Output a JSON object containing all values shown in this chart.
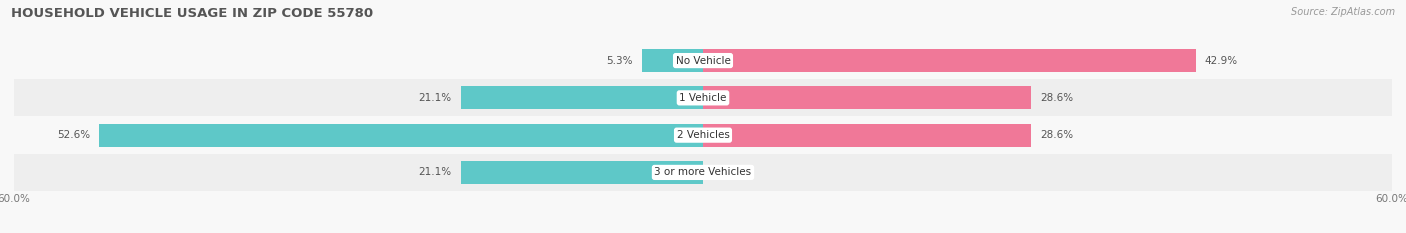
{
  "title": "HOUSEHOLD VEHICLE USAGE IN ZIP CODE 55780",
  "source": "Source: ZipAtlas.com",
  "categories": [
    "3 or more Vehicles",
    "2 Vehicles",
    "1 Vehicle",
    "No Vehicle"
  ],
  "owner_values": [
    21.1,
    52.6,
    21.1,
    5.3
  ],
  "renter_values": [
    0.0,
    28.6,
    28.6,
    42.9
  ],
  "axis_max": 60.0,
  "owner_color": "#5EC8C8",
  "renter_color": "#F07898",
  "row_bg_even": "#EEEEEE",
  "row_bg_odd": "#F8F8F8",
  "title_fontsize": 9.5,
  "source_fontsize": 7,
  "tick_fontsize": 7.5,
  "bar_label_fontsize": 7.5,
  "category_fontsize": 7.5,
  "legend_fontsize": 8,
  "bar_height": 0.62,
  "figsize": [
    14.06,
    2.33
  ],
  "dpi": 100
}
